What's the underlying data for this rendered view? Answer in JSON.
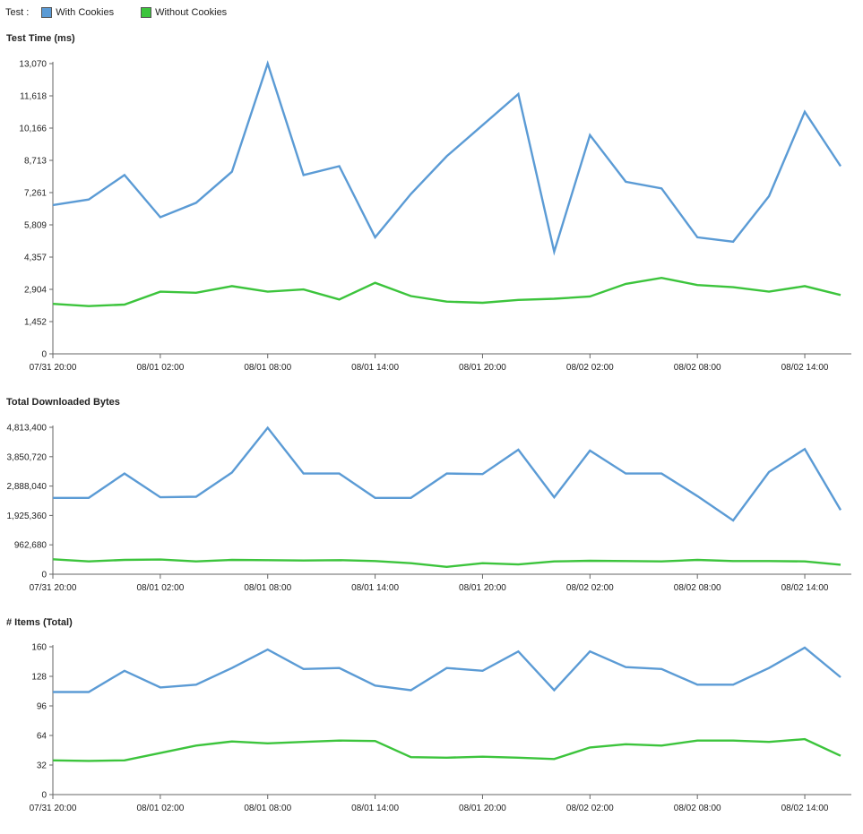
{
  "legend": {
    "title": "Test :",
    "items": [
      {
        "label": "With Cookies",
        "color": "#5b9bd5"
      },
      {
        "label": "Without Cookies",
        "color": "#3cc43c"
      }
    ]
  },
  "chart_data": [
    {
      "type": "line",
      "title": "Test Time (ms)",
      "x_tick_labels": [
        "07/31 20:00",
        "08/01 02:00",
        "08/01 08:00",
        "08/01 14:00",
        "08/01 20:00",
        "08/02 02:00",
        "08/02 08:00",
        "08/02 14:00"
      ],
      "y_ticks": [
        0,
        1452,
        2904,
        4357,
        5809,
        7261,
        8713,
        10166,
        11618,
        13070
      ],
      "y_tick_labels": [
        "0",
        "1,452",
        "2,904",
        "4,357",
        "5,809",
        "7,261",
        "8,713",
        "10,166",
        "11,618",
        "13,070"
      ],
      "ylim": [
        0,
        13070
      ],
      "grid": false,
      "series": [
        {
          "name": "With Cookies",
          "color": "#5b9bd5",
          "values": [
            6700,
            6950,
            8050,
            6150,
            6800,
            8200,
            13070,
            8050,
            8450,
            5250,
            7200,
            8900,
            10300,
            11700,
            4600,
            9850,
            7750,
            7450,
            5250,
            5050,
            7100,
            10900,
            8450
          ]
        },
        {
          "name": "Without Cookies",
          "color": "#3cc43c",
          "values": [
            2250,
            2150,
            2220,
            2800,
            2750,
            3050,
            2800,
            2900,
            2450,
            3200,
            2600,
            2350,
            2300,
            2430,
            2480,
            2580,
            3150,
            3420,
            3100,
            3000,
            2800,
            3050,
            2650
          ]
        }
      ]
    },
    {
      "type": "line",
      "title": "Total Downloaded Bytes",
      "x_tick_labels": [
        "07/31 20:00",
        "08/01 02:00",
        "08/01 08:00",
        "08/01 14:00",
        "08/01 20:00",
        "08/02 02:00",
        "08/02 08:00",
        "08/02 14:00"
      ],
      "y_ticks": [
        0,
        962680,
        1925360,
        2888040,
        3850720,
        4813400
      ],
      "y_tick_labels": [
        "0",
        "962,680",
        "1,925,360",
        "2,888,040",
        "3,850,720",
        "4,813,400"
      ],
      "ylim": [
        0,
        4813400
      ],
      "grid": false,
      "series": [
        {
          "name": "With Cookies",
          "color": "#5b9bd5",
          "values": [
            2500000,
            2500000,
            3300000,
            2520000,
            2540000,
            3330000,
            4800000,
            3300000,
            3300000,
            2500000,
            2500000,
            3300000,
            3280000,
            4080000,
            2520000,
            4050000,
            3300000,
            3300000,
            2560000,
            1760000,
            3350000,
            4100000,
            2100000
          ]
        },
        {
          "name": "Without Cookies",
          "color": "#3cc43c",
          "values": [
            490000,
            420000,
            470000,
            480000,
            420000,
            470000,
            460000,
            450000,
            460000,
            430000,
            360000,
            240000,
            360000,
            320000,
            420000,
            440000,
            430000,
            420000,
            470000,
            430000,
            430000,
            420000,
            310000
          ]
        }
      ]
    },
    {
      "type": "line",
      "title": "# Items (Total)",
      "x_tick_labels": [
        "07/31 20:00",
        "08/01 02:00",
        "08/01 08:00",
        "08/01 14:00",
        "08/01 20:00",
        "08/02 02:00",
        "08/02 08:00",
        "08/02 14:00"
      ],
      "y_ticks": [
        0,
        32,
        64,
        96,
        128,
        160
      ],
      "y_tick_labels": [
        "0",
        "32",
        "64",
        "96",
        "128",
        "160"
      ],
      "ylim": [
        0,
        160
      ],
      "grid": false,
      "series": [
        {
          "name": "With Cookies",
          "color": "#5b9bd5",
          "values": [
            111,
            111,
            134,
            116,
            119,
            137,
            157,
            136,
            137,
            118,
            113,
            137,
            134,
            155,
            113,
            155,
            138,
            136,
            119,
            119,
            137,
            159,
            127
          ]
        },
        {
          "name": "Without Cookies",
          "color": "#3cc43c",
          "values": [
            37,
            36.5,
            37,
            45,
            53,
            57.5,
            55.5,
            57,
            58.5,
            58,
            40.5,
            40,
            41,
            40,
            38.5,
            51,
            54.5,
            53,
            58.5,
            58.5,
            57,
            60,
            42
          ]
        }
      ]
    }
  ]
}
